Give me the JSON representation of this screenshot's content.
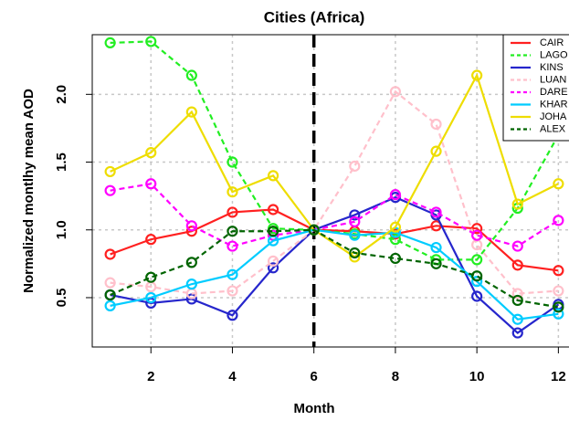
{
  "chart_data": {
    "type": "line",
    "title": "Cities (Africa)",
    "x_label": "Month",
    "y_label": "Normalized montlhy mean AOD",
    "x": [
      1,
      2,
      3,
      4,
      5,
      6,
      7,
      8,
      9,
      10,
      11,
      12
    ],
    "xlim": [
      0.56,
      12.44
    ],
    "ylim": [
      0.136,
      2.44
    ],
    "xticks": [
      2,
      4,
      6,
      8,
      10,
      12
    ],
    "yticks": [
      0.5,
      {
        "value": 1,
        "label": "1.0"
      },
      1.5,
      {
        "value": 2,
        "label": "2.0"
      }
    ],
    "grid": true,
    "vline": 6,
    "legend": "top-right",
    "series": [
      {
        "name": "CAIR",
        "color": "#ff2020",
        "dashed": false,
        "values": [
          0.82,
          0.93,
          0.99,
          1.13,
          1.15,
          1.0,
          0.99,
          0.97,
          1.03,
          1.01,
          0.74,
          0.7
        ]
      },
      {
        "name": "LAGO",
        "color": "#22ee22",
        "dashed": true,
        "values": [
          2.38,
          2.39,
          2.14,
          1.5,
          1.01,
          1.0,
          0.97,
          0.93,
          0.78,
          0.78,
          1.16,
          1.7
        ]
      },
      {
        "name": "KINS",
        "color": "#2626cc",
        "dashed": false,
        "values": [
          0.52,
          0.46,
          0.49,
          0.37,
          0.72,
          1.0,
          1.11,
          1.24,
          1.11,
          0.51,
          0.24,
          0.45
        ]
      },
      {
        "name": "LUAN",
        "color": "#ffc0cb",
        "dashed": true,
        "values": [
          0.61,
          0.58,
          0.53,
          0.55,
          0.77,
          1.0,
          1.47,
          2.02,
          1.78,
          0.89,
          0.53,
          0.55
        ]
      },
      {
        "name": "DARE",
        "color": "#ff00ff",
        "dashed": true,
        "values": [
          1.29,
          1.34,
          1.03,
          0.88,
          0.96,
          1.0,
          1.06,
          1.26,
          1.13,
          0.96,
          0.88,
          1.07
        ]
      },
      {
        "name": "KHAR",
        "color": "#00ccff",
        "dashed": false,
        "values": [
          0.44,
          0.5,
          0.6,
          0.67,
          0.92,
          1.0,
          0.96,
          0.98,
          0.87,
          0.62,
          0.34,
          0.38
        ]
      },
      {
        "name": "JOHA",
        "color": "#eedd00",
        "dashed": false,
        "values": [
          1.43,
          1.57,
          1.87,
          1.28,
          1.4,
          1.0,
          0.8,
          1.02,
          1.58,
          2.14,
          1.19,
          1.34
        ]
      },
      {
        "name": "ALEX",
        "color": "#006400",
        "dashed": true,
        "values": [
          0.52,
          0.65,
          0.76,
          0.99,
          0.99,
          1.0,
          0.83,
          0.79,
          0.75,
          0.66,
          0.48,
          0.43
        ]
      }
    ]
  }
}
